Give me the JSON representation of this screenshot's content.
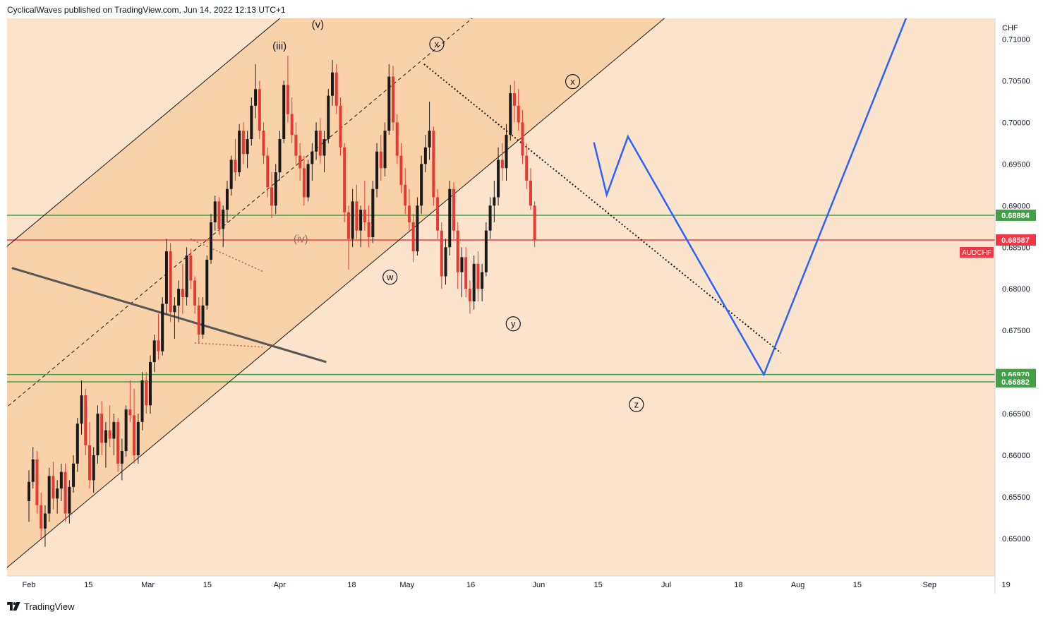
{
  "header": {
    "published_line": "CyclicalWaves published on TradingView.com, Jun 14, 2022 12:13 UTC+1"
  },
  "footer": {
    "brand": "TradingView",
    "logo_icon": "tradingview-logo-icon"
  },
  "colors": {
    "plot_background": "#fbe3cc",
    "channel_fill": "#f9d2aa",
    "candle_up": "#1a1a1a",
    "candle_down": "#e53935",
    "projection": "#2962ff",
    "support_line": "#43a047",
    "price_line": "#f23645"
  },
  "chart_data": {
    "type": "candlestick",
    "symbol": "AUDCHF",
    "currency_label": "CHF",
    "ylim": [
      0.6455,
      0.7125
    ],
    "y_ticks": [
      "0.71000",
      "0.70500",
      "0.70000",
      "0.69500",
      "0.69000",
      "0.68500",
      "0.68000",
      "0.67500",
      "0.67000",
      "0.66500",
      "0.66000",
      "0.65500",
      "0.65000"
    ],
    "x_ticks": [
      {
        "label": "Feb",
        "day": 0
      },
      {
        "label": "15",
        "day": 14
      },
      {
        "label": "Mar",
        "day": 28
      },
      {
        "label": "15",
        "day": 42
      },
      {
        "label": "Apr",
        "day": 59
      },
      {
        "label": "18",
        "day": 76
      },
      {
        "label": "May",
        "day": 89
      },
      {
        "label": "16",
        "day": 104
      },
      {
        "label": "Jun",
        "day": 120
      },
      {
        "label": "15",
        "day": 134
      },
      {
        "label": "Jul",
        "day": 150
      },
      {
        "label": "18",
        "day": 167
      },
      {
        "label": "Aug",
        "day": 181
      },
      {
        "label": "15",
        "day": 195
      },
      {
        "label": "Sep",
        "day": 212
      },
      {
        "label": "19",
        "day": 230
      }
    ],
    "price_labels": [
      {
        "value": 0.68884,
        "text": "0.68884",
        "style": "green"
      },
      {
        "value": 0.68587,
        "text": "0.68587",
        "style": "red"
      },
      {
        "value": 0.6697,
        "text": "0.66970",
        "style": "green"
      },
      {
        "value": 0.66882,
        "text": "0.66882",
        "style": "green"
      }
    ],
    "symbol_tag": "AUDCHF",
    "horizontal_levels": [
      {
        "value": 0.68884,
        "color": "green"
      },
      {
        "value": 0.68587,
        "color": "red"
      },
      {
        "value": 0.6697,
        "color": "green"
      },
      {
        "value": 0.66882,
        "color": "green"
      }
    ],
    "channel": {
      "upper": [
        [
          -4,
          0.6856
        ],
        [
          162,
          0.7178
        ]
      ],
      "middle": [
        [
          -4,
          0.6653
        ],
        [
          120,
          0.7157
        ]
      ],
      "lower": [
        [
          -4,
          0.647
        ],
        [
          162,
          0.7178
        ]
      ],
      "lower_ext": [
        [
          -4,
          0.647
        ],
        [
          162,
          0.7178
        ]
      ]
    },
    "trendlines": [
      {
        "style": "solid",
        "color": "#555555",
        "width": 3,
        "points": [
          [
            -4,
            0.6825
          ],
          [
            70,
            0.6712
          ]
        ]
      },
      {
        "style": "dotted",
        "color": "#1a1a1a",
        "width": 2,
        "points": [
          [
            93,
            0.707
          ],
          [
            177,
            0.6723
          ]
        ]
      },
      {
        "style": "dotted",
        "color": "#c0603a",
        "width": 1.5,
        "points": [
          [
            38,
            0.686
          ],
          [
            55,
            0.6821
          ]
        ]
      },
      {
        "style": "dotted",
        "color": "#c0603a",
        "width": 1.5,
        "points": [
          [
            39,
            0.6735
          ],
          [
            55,
            0.673
          ]
        ]
      }
    ],
    "channel_lower_line": [
      [
        -4,
        0.647
      ],
      [
        162,
        0.7178
      ]
    ],
    "wave_labels": [
      {
        "text": "(iii)",
        "day": 59,
        "value": 0.7092,
        "circled": false,
        "color": "#131722"
      },
      {
        "text": "(v)",
        "day": 68,
        "value": 0.7118,
        "circled": false,
        "color": "#131722"
      },
      {
        "text": "(iv)",
        "day": 64,
        "value": 0.686,
        "circled": false,
        "color": "#8a7060"
      },
      {
        "text": "x",
        "day": 96,
        "value": 0.7094,
        "circled": true
      },
      {
        "text": "x",
        "day": 128,
        "value": 0.7049,
        "circled": true
      },
      {
        "text": "w",
        "day": 85,
        "value": 0.6814,
        "circled": true
      },
      {
        "text": "y",
        "day": 114,
        "value": 0.6758,
        "circled": true
      },
      {
        "text": "z",
        "day": 143,
        "value": 0.6661,
        "circled": true
      }
    ],
    "projection_path": [
      [
        133,
        0.6976
      ],
      [
        136,
        0.6913
      ],
      [
        141,
        0.6983
      ],
      [
        173,
        0.6697
      ],
      [
        207,
        0.7132
      ]
    ],
    "candles": [
      [
        0.6545,
        0.6582,
        0.652,
        0.6568
      ],
      [
        0.6568,
        0.661,
        0.656,
        0.6595
      ],
      [
        0.6595,
        0.6605,
        0.653,
        0.654
      ],
      [
        0.654,
        0.6555,
        0.65,
        0.6512
      ],
      [
        0.6512,
        0.654,
        0.649,
        0.653
      ],
      [
        0.653,
        0.6585,
        0.652,
        0.6575
      ],
      [
        0.6575,
        0.6592,
        0.6535,
        0.6548
      ],
      [
        0.6548,
        0.657,
        0.653,
        0.656
      ],
      [
        0.656,
        0.659,
        0.6545,
        0.658
      ],
      [
        0.658,
        0.659,
        0.652,
        0.653
      ],
      [
        0.653,
        0.657,
        0.6518,
        0.6562
      ],
      [
        0.6562,
        0.66,
        0.6555,
        0.659
      ],
      [
        0.659,
        0.6645,
        0.658,
        0.6638
      ],
      [
        0.6638,
        0.669,
        0.6625,
        0.6672
      ],
      [
        0.6672,
        0.668,
        0.66,
        0.6612
      ],
      [
        0.6612,
        0.664,
        0.656,
        0.657
      ],
      [
        0.657,
        0.661,
        0.6555,
        0.66
      ],
      [
        0.66,
        0.666,
        0.659,
        0.665
      ],
      [
        0.665,
        0.6665,
        0.66,
        0.6615
      ],
      [
        0.6615,
        0.664,
        0.6585,
        0.663
      ],
      [
        0.663,
        0.666,
        0.661,
        0.662
      ],
      [
        0.662,
        0.665,
        0.66,
        0.664
      ],
      [
        0.664,
        0.6645,
        0.658,
        0.659
      ],
      [
        0.659,
        0.662,
        0.657,
        0.6605
      ],
      [
        0.6605,
        0.666,
        0.6598,
        0.6655
      ],
      [
        0.6655,
        0.669,
        0.664,
        0.6648
      ],
      [
        0.6648,
        0.668,
        0.659,
        0.66
      ],
      [
        0.66,
        0.665,
        0.659,
        0.664
      ],
      [
        0.664,
        0.67,
        0.663,
        0.669
      ],
      [
        0.669,
        0.67,
        0.665,
        0.666
      ],
      [
        0.666,
        0.672,
        0.665,
        0.6712
      ],
      [
        0.6712,
        0.6745,
        0.67,
        0.6738
      ],
      [
        0.6738,
        0.677,
        0.6715,
        0.6725
      ],
      [
        0.6725,
        0.679,
        0.672,
        0.6782
      ],
      [
        0.6782,
        0.686,
        0.677,
        0.6845
      ],
      [
        0.6845,
        0.6855,
        0.676,
        0.6772
      ],
      [
        0.6772,
        0.679,
        0.674,
        0.678
      ],
      [
        0.678,
        0.681,
        0.676,
        0.68
      ],
      [
        0.68,
        0.683,
        0.677,
        0.679
      ],
      [
        0.679,
        0.685,
        0.678,
        0.684
      ],
      [
        0.684,
        0.6848,
        0.68,
        0.681
      ],
      [
        0.681,
        0.6815,
        0.677,
        0.678
      ],
      [
        0.678,
        0.679,
        0.6735,
        0.6745
      ],
      [
        0.6745,
        0.679,
        0.674,
        0.678
      ],
      [
        0.678,
        0.684,
        0.6775,
        0.6835
      ],
      [
        0.6835,
        0.689,
        0.683,
        0.688
      ],
      [
        0.688,
        0.6912,
        0.687,
        0.6905
      ],
      [
        0.6905,
        0.691,
        0.6865,
        0.6872
      ],
      [
        0.6872,
        0.69,
        0.685,
        0.6895
      ],
      [
        0.6895,
        0.693,
        0.688,
        0.692
      ],
      [
        0.692,
        0.696,
        0.6912,
        0.6955
      ],
      [
        0.6955,
        0.698,
        0.693,
        0.694
      ],
      [
        0.694,
        0.6998,
        0.6935,
        0.699
      ],
      [
        0.699,
        0.7,
        0.695,
        0.6962
      ],
      [
        0.6962,
        0.699,
        0.6945,
        0.698
      ],
      [
        0.698,
        0.703,
        0.6972,
        0.702
      ],
      [
        0.702,
        0.707,
        0.7005,
        0.704
      ],
      [
        0.704,
        0.705,
        0.698,
        0.699
      ],
      [
        0.699,
        0.7,
        0.695,
        0.696
      ],
      [
        0.696,
        0.697,
        0.691,
        0.6922
      ],
      [
        0.6922,
        0.694,
        0.6885,
        0.69
      ],
      [
        0.69,
        0.695,
        0.689,
        0.694
      ],
      [
        0.694,
        0.699,
        0.693,
        0.698
      ],
      [
        0.698,
        0.705,
        0.6975,
        0.7045
      ],
      [
        0.7045,
        0.708,
        0.7,
        0.701
      ],
      [
        0.701,
        0.703,
        0.6975,
        0.6985
      ],
      [
        0.6985,
        0.7,
        0.695,
        0.696
      ],
      [
        0.696,
        0.6975,
        0.693,
        0.6945
      ],
      [
        0.6945,
        0.696,
        0.69,
        0.691
      ],
      [
        0.691,
        0.6955,
        0.6905,
        0.695
      ],
      [
        0.695,
        0.6975,
        0.693,
        0.6965
      ],
      [
        0.6965,
        0.7,
        0.6955,
        0.699
      ],
      [
        0.699,
        0.7005,
        0.695,
        0.696
      ],
      [
        0.696,
        0.699,
        0.694,
        0.698
      ],
      [
        0.698,
        0.704,
        0.6975,
        0.7032
      ],
      [
        0.7032,
        0.7075,
        0.702,
        0.706
      ],
      [
        0.706,
        0.707,
        0.701,
        0.702
      ],
      [
        0.702,
        0.703,
        0.696,
        0.697
      ],
      [
        0.697,
        0.6975,
        0.688,
        0.6892
      ],
      [
        0.6892,
        0.69,
        0.6823,
        0.686
      ],
      [
        0.686,
        0.692,
        0.685,
        0.6905
      ],
      [
        0.6905,
        0.6925,
        0.686,
        0.687
      ],
      [
        0.687,
        0.69,
        0.685,
        0.6895
      ],
      [
        0.6895,
        0.693,
        0.687,
        0.688
      ],
      [
        0.688,
        0.69,
        0.685,
        0.6862
      ],
      [
        0.6862,
        0.693,
        0.6855,
        0.692
      ],
      [
        0.692,
        0.6975,
        0.691,
        0.6965
      ],
      [
        0.6965,
        0.6985,
        0.693,
        0.6945
      ],
      [
        0.6945,
        0.7,
        0.6935,
        0.699
      ],
      [
        0.699,
        0.707,
        0.6985,
        0.7055
      ],
      [
        0.7055,
        0.7068,
        0.699,
        0.7
      ],
      [
        0.7,
        0.701,
        0.695,
        0.696
      ],
      [
        0.696,
        0.6975,
        0.6915,
        0.6925
      ],
      [
        0.6925,
        0.6945,
        0.689,
        0.69
      ],
      [
        0.69,
        0.692,
        0.687,
        0.688
      ],
      [
        0.688,
        0.689,
        0.6832,
        0.6845
      ],
      [
        0.6845,
        0.691,
        0.684,
        0.69
      ],
      [
        0.69,
        0.696,
        0.689,
        0.695
      ],
      [
        0.695,
        0.6985,
        0.694,
        0.697
      ],
      [
        0.697,
        0.7025,
        0.6955,
        0.699
      ],
      [
        0.699,
        0.6995,
        0.69,
        0.691
      ],
      [
        0.691,
        0.692,
        0.686,
        0.687
      ],
      [
        0.687,
        0.688,
        0.68,
        0.6815
      ],
      [
        0.6815,
        0.686,
        0.6805,
        0.685
      ],
      [
        0.685,
        0.693,
        0.684,
        0.692
      ],
      [
        0.692,
        0.6928,
        0.686,
        0.687
      ],
      [
        0.687,
        0.688,
        0.68,
        0.682
      ],
      [
        0.682,
        0.685,
        0.679,
        0.6838
      ],
      [
        0.6838,
        0.685,
        0.679,
        0.68
      ],
      [
        0.68,
        0.681,
        0.677,
        0.6785
      ],
      [
        0.6785,
        0.684,
        0.6775,
        0.683
      ],
      [
        0.683,
        0.6845,
        0.6785,
        0.68
      ],
      [
        0.68,
        0.683,
        0.6785,
        0.682
      ],
      [
        0.682,
        0.688,
        0.6815,
        0.687
      ],
      [
        0.687,
        0.691,
        0.686,
        0.69
      ],
      [
        0.69,
        0.693,
        0.688,
        0.691
      ],
      [
        0.691,
        0.697,
        0.69,
        0.6955
      ],
      [
        0.6955,
        0.6975,
        0.693,
        0.6945
      ],
      [
        0.6945,
        0.6998,
        0.693,
        0.6985
      ],
      [
        0.6985,
        0.7045,
        0.6978,
        0.7035
      ],
      [
        0.7035,
        0.705,
        0.7,
        0.702
      ],
      [
        0.702,
        0.704,
        0.699,
        0.7
      ],
      [
        0.7,
        0.7015,
        0.695,
        0.696
      ],
      [
        0.696,
        0.6975,
        0.692,
        0.693
      ],
      [
        0.693,
        0.6945,
        0.6895,
        0.69
      ],
      [
        0.69,
        0.6905,
        0.685,
        0.6859
      ]
    ]
  }
}
